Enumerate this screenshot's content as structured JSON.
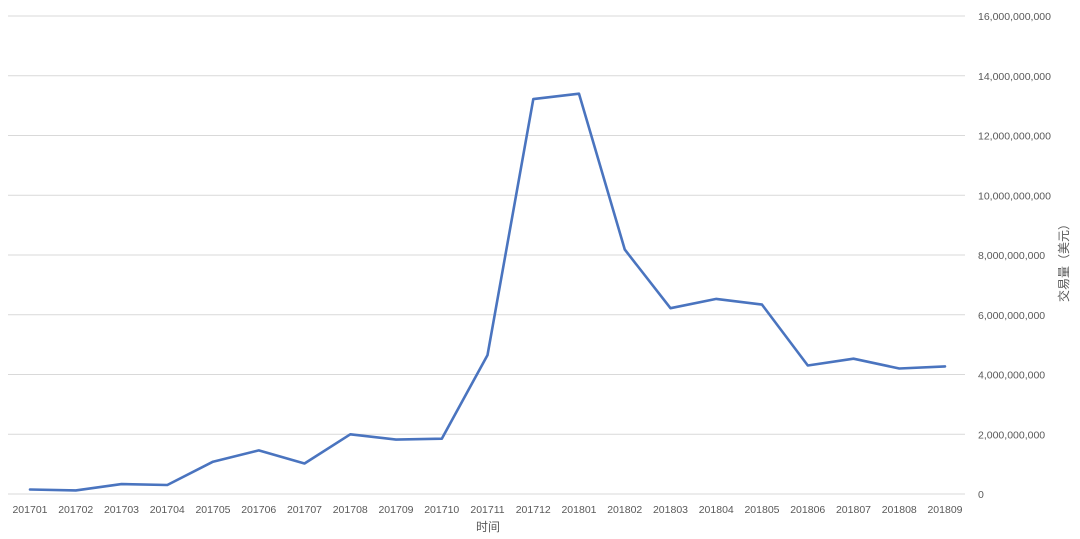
{
  "chart_data": {
    "type": "line",
    "x": [
      "201701",
      "201702",
      "201703",
      "201704",
      "201705",
      "201706",
      "201707",
      "201708",
      "201709",
      "201710",
      "201711",
      "201712",
      "201801",
      "201802",
      "201803",
      "201804",
      "201805",
      "201806",
      "201807",
      "201808",
      "201809"
    ],
    "series": [
      {
        "values": [
          150000000,
          120000000,
          330000000,
          300000000,
          1080000000,
          1460000000,
          1020000000,
          2000000000,
          1820000000,
          1850000000,
          4650000000,
          13220000000,
          13400000000,
          8180000000,
          6220000000,
          6530000000,
          6340000000,
          4300000000,
          4530000000,
          4200000000,
          4270000000
        ],
        "color": "#4a74bf"
      }
    ],
    "xlabel": "时间",
    "ylabel": "交易量（美元）",
    "ylim": [
      0,
      16000000000
    ],
    "yticks": [
      0,
      2000000000,
      4000000000,
      6000000000,
      8000000000,
      10000000000,
      12000000000,
      14000000000,
      16000000000
    ],
    "ytick_labels": [
      "0",
      "2,000,000,000",
      "4,000,000,000",
      "6,000,000,000",
      "8,000,000,000",
      "10,000,000,000",
      "12,000,000,000",
      "14,000,000,000",
      "16,000,000,000"
    ],
    "y_axis_side": "right",
    "grid": true,
    "legend": "none"
  }
}
